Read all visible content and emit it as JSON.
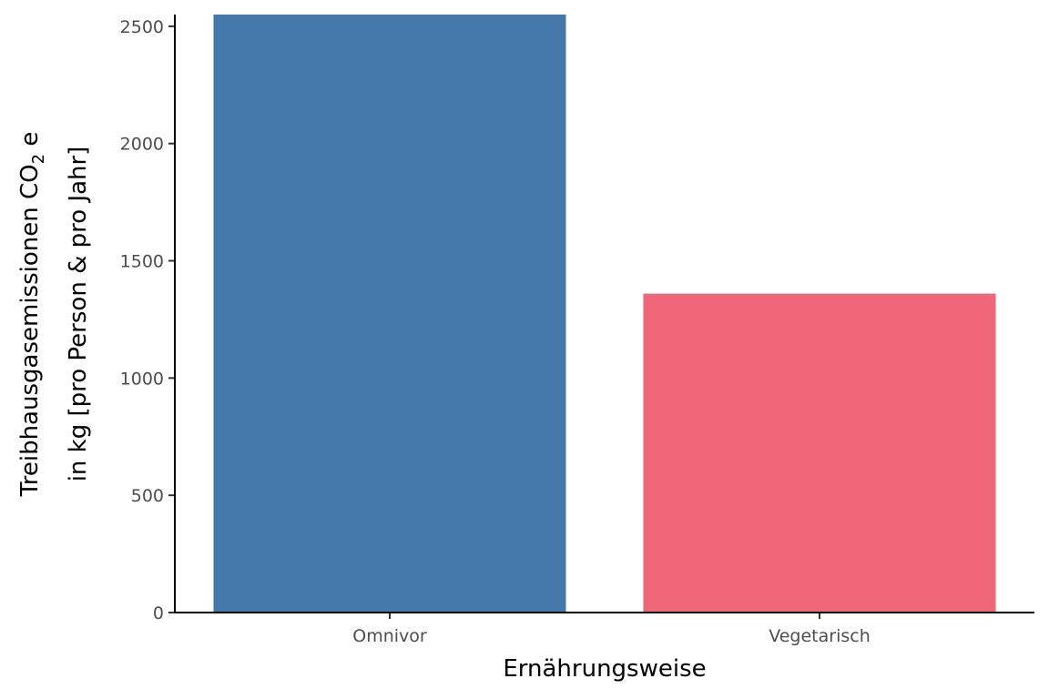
{
  "chart_data": {
    "type": "bar",
    "categories": [
      "Omnivor",
      "Vegetarisch"
    ],
    "values": [
      2550,
      1360
    ],
    "colors": [
      "#4477aa",
      "#ee6677"
    ],
    "xlabel": "Ernährungsweise",
    "ylabel": {
      "line1_prefix": "Treibhausgasemissionen  CO",
      "line1_subscript": "2",
      "line1_suffix": " e",
      "line2": "in kg [pro Person & pro Jahr]"
    },
    "ylim": [
      0,
      2550
    ],
    "yticks": [
      0,
      500,
      1000,
      1500,
      2000,
      2500
    ],
    "grid": false,
    "legend": "none"
  }
}
